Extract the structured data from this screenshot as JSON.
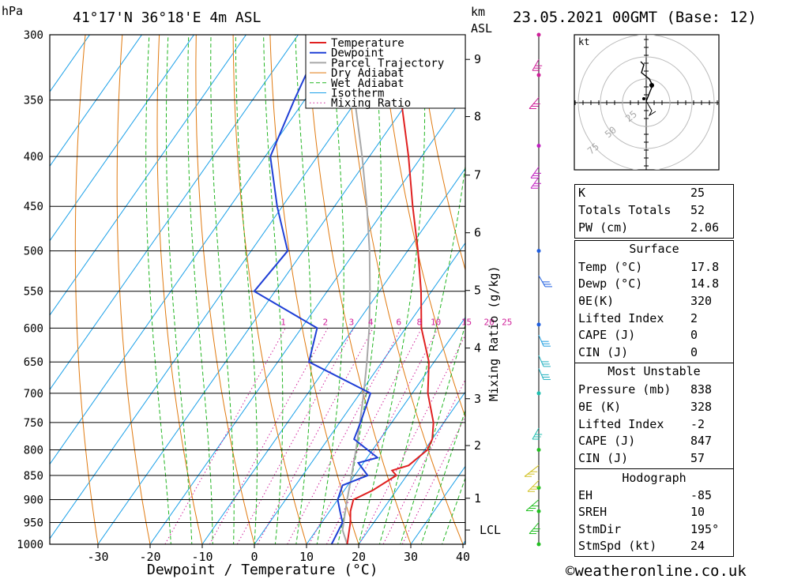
{
  "header": {
    "pressure_unit": "hPa",
    "location": "41°17'N  36°18'E  4m  ASL",
    "km_label": "km",
    "asl_label": "ASL",
    "datetime": "23.05.2021  00GMT  (Base: 12)"
  },
  "credit": "©weatheronline.co.uk",
  "hodograph": {
    "unit_label": "kt",
    "ring_labels": [
      "25",
      "50",
      "75"
    ]
  },
  "indices": [
    {
      "label": "K",
      "value": "25"
    },
    {
      "label": "Totals Totals",
      "value": "52"
    },
    {
      "label": "PW (cm)",
      "value": "2.06"
    }
  ],
  "surface": {
    "title": "Surface",
    "rows": [
      {
        "label": "Temp (°C)",
        "value": "17.8"
      },
      {
        "label": "Dewp (°C)",
        "value": "14.8"
      },
      {
        "label": "θE(K)",
        "value": "320"
      },
      {
        "label": "Lifted Index",
        "value": "2"
      },
      {
        "label": "CAPE (J)",
        "value": "0"
      },
      {
        "label": "CIN (J)",
        "value": "0"
      }
    ]
  },
  "most_unstable": {
    "title": "Most Unstable",
    "rows": [
      {
        "label": "Pressure (mb)",
        "value": "838"
      },
      {
        "label": "θE (K)",
        "value": "328"
      },
      {
        "label": "Lifted Index",
        "value": "-2"
      },
      {
        "label": "CAPE (J)",
        "value": "847"
      },
      {
        "label": "CIN (J)",
        "value": "57"
      }
    ]
  },
  "hodograph_table": {
    "title": "Hodograph",
    "rows": [
      {
        "label": "EH",
        "value": "-85"
      },
      {
        "label": "SREH",
        "value": "10"
      },
      {
        "label": "StmDir",
        "value": "195°"
      },
      {
        "label": "StmSpd (kt)",
        "value": "24"
      }
    ]
  },
  "chart_data": {
    "type": "line",
    "title": "Skew-T log-P diagram",
    "xlabel": "Dewpoint / Temperature (°C)",
    "ylabel": "hPa",
    "y2label": "Mixing Ratio (g/kg)",
    "xlim": [
      -40,
      40
    ],
    "ylim": [
      1000,
      300
    ],
    "x_ticks": [
      -30,
      -20,
      -10,
      0,
      10,
      20,
      30,
      40
    ],
    "y_ticks": [
      300,
      350,
      400,
      450,
      500,
      550,
      600,
      650,
      700,
      750,
      800,
      850,
      900,
      950,
      1000
    ],
    "km_ticks": [
      {
        "label": "9",
        "p": 318
      },
      {
        "label": "8",
        "p": 364
      },
      {
        "label": "7",
        "p": 418
      },
      {
        "label": "6",
        "p": 479
      },
      {
        "label": "5",
        "p": 549
      },
      {
        "label": "4",
        "p": 629
      },
      {
        "label": "3",
        "p": 709
      },
      {
        "label": "2",
        "p": 792
      },
      {
        "label": "1",
        "p": 897
      },
      {
        "label": "LCL",
        "p": 967
      }
    ],
    "mixing_ratio_labels": [
      "1",
      "2",
      "3",
      "4",
      "6",
      "8",
      "10",
      "15",
      "20",
      "25"
    ],
    "legend": [
      "Temperature",
      "Dewpoint",
      "Parcel Trajectory",
      "Dry Adiabat",
      "Wet Adiabat",
      "Isotherm",
      "Mixing Ratio"
    ],
    "legend_position": "top-right",
    "colors": {
      "temperature": "#e02020",
      "dewpoint": "#1f3fd6",
      "parcel": "#a8a8a8",
      "dry_adiabat": "#e07a10",
      "wet_adiabat": "#22b522",
      "isotherm": "#1aa0e8",
      "mixing_ratio": "#d0209a"
    },
    "series": [
      {
        "name": "Temperature",
        "points": [
          [
            1000,
            17.8
          ],
          [
            950,
            15.5
          ],
          [
            925,
            14.0
          ],
          [
            900,
            13.0
          ],
          [
            880,
            15.5
          ],
          [
            850,
            18.0
          ],
          [
            840,
            16.5
          ],
          [
            830,
            19.0
          ],
          [
            800,
            20.5
          ],
          [
            780,
            20.0
          ],
          [
            750,
            18.0
          ],
          [
            700,
            13.0
          ],
          [
            650,
            9.0
          ],
          [
            600,
            3.0
          ],
          [
            550,
            -2.0
          ],
          [
            500,
            -8.0
          ],
          [
            450,
            -15.0
          ],
          [
            400,
            -22.5
          ],
          [
            350,
            -31.5
          ],
          [
            300,
            -41.0
          ]
        ]
      },
      {
        "name": "Dewpoint",
        "points": [
          [
            1000,
            14.8
          ],
          [
            950,
            14.0
          ],
          [
            925,
            12.0
          ],
          [
            900,
            10.0
          ],
          [
            870,
            9.0
          ],
          [
            850,
            12.5
          ],
          [
            825,
            9.0
          ],
          [
            815,
            12.0
          ],
          [
            780,
            5.0
          ],
          [
            750,
            4.0
          ],
          [
            700,
            2.0
          ],
          [
            650,
            -14.0
          ],
          [
            600,
            -17.0
          ],
          [
            550,
            -34.0
          ],
          [
            500,
            -33.0
          ],
          [
            450,
            -41.0
          ],
          [
            400,
            -49.0
          ],
          [
            350,
            -52.0
          ],
          [
            300,
            -55.0
          ]
        ]
      },
      {
        "name": "Parcel Trajectory",
        "points": [
          [
            1000,
            17.8
          ],
          [
            967,
            15.0
          ],
          [
            900,
            11.8
          ],
          [
            850,
            9.4
          ],
          [
            800,
            6.8
          ],
          [
            750,
            3.9
          ],
          [
            700,
            0.7
          ],
          [
            650,
            -2.9
          ],
          [
            600,
            -7.0
          ],
          [
            550,
            -11.8
          ],
          [
            500,
            -17.3
          ],
          [
            450,
            -23.8
          ],
          [
            400,
            -31.4
          ],
          [
            350,
            -40.4
          ],
          [
            300,
            -50.5
          ]
        ]
      }
    ]
  }
}
